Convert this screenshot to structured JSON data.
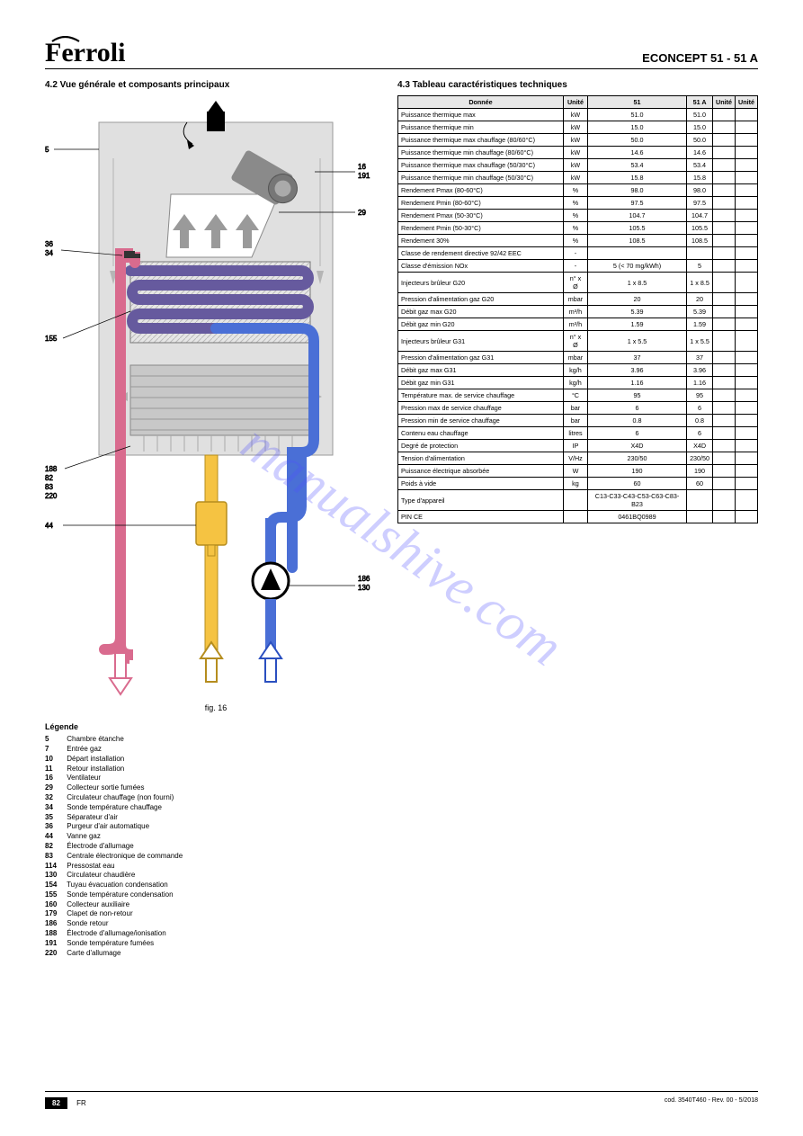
{
  "header": {
    "brand_text": "Ferroli",
    "model": "ECONCEPT 51 - 51 A"
  },
  "sections": {
    "general_title": "4.2 Vue générale et composants principaux",
    "table_title": "4.3 Tableau caractéristiques techniques"
  },
  "figure": {
    "caption": "fig. 16",
    "legend_title": "Légende",
    "items": [
      {
        "n": "5",
        "t": "Chambre étanche"
      },
      {
        "n": "7",
        "t": "Entrée gaz"
      },
      {
        "n": "10",
        "t": "Départ installation"
      },
      {
        "n": "11",
        "t": "Retour installation"
      },
      {
        "n": "16",
        "t": "Ventilateur"
      },
      {
        "n": "29",
        "t": "Collecteur sortie fumées"
      },
      {
        "n": "32",
        "t": "Circulateur chauffage (non fourni)"
      },
      {
        "n": "34",
        "t": "Sonde température chauffage"
      },
      {
        "n": "35",
        "t": "Séparateur d'air"
      },
      {
        "n": "36",
        "t": "Purgeur d'air automatique"
      },
      {
        "n": "44",
        "t": "Vanne gaz"
      },
      {
        "n": "82",
        "t": "Électrode d'allumage"
      },
      {
        "n": "83",
        "t": "Centrale électronique de commande"
      },
      {
        "n": "114",
        "t": "Pressostat eau"
      },
      {
        "n": "130",
        "t": "Circulateur chaudière"
      },
      {
        "n": "154",
        "t": "Tuyau évacuation condensation"
      },
      {
        "n": "155",
        "t": "Sonde température condensation"
      },
      {
        "n": "160",
        "t": "Collecteur auxiliaire"
      },
      {
        "n": "179",
        "t": "Clapet de non-retour"
      },
      {
        "n": "186",
        "t": "Sonde retour"
      },
      {
        "n": "188",
        "t": "Électrode d'allumage/ionisation"
      },
      {
        "n": "191",
        "t": "Sonde température fumées"
      },
      {
        "n": "220",
        "t": "Carte d'allumage"
      }
    ]
  },
  "table": {
    "columns": [
      "Donnée",
      "Unité",
      "51",
      "51 A",
      "Unité",
      "Unité"
    ],
    "rows": [
      [
        "Puissance thermique max",
        "kW",
        "51.0",
        "51.0",
        "",
        ""
      ],
      [
        "Puissance thermique min",
        "kW",
        "15.0",
        "15.0",
        "",
        ""
      ],
      [
        "Puissance thermique max chauffage (80/60°C)",
        "kW",
        "50.0",
        "50.0",
        "",
        ""
      ],
      [
        "Puissance thermique min chauffage (80/60°C)",
        "kW",
        "14.6",
        "14.6",
        "",
        ""
      ],
      [
        "Puissance thermique max chauffage (50/30°C)",
        "kW",
        "53.4",
        "53.4",
        "",
        ""
      ],
      [
        "Puissance thermique min chauffage (50/30°C)",
        "kW",
        "15.8",
        "15.8",
        "",
        ""
      ],
      [
        "Rendement Pmax (80-60°C)",
        "%",
        "98.0",
        "98.0",
        "",
        ""
      ],
      [
        "Rendement Pmin (80-60°C)",
        "%",
        "97.5",
        "97.5",
        "",
        ""
      ],
      [
        "Rendement Pmax (50-30°C)",
        "%",
        "104.7",
        "104.7",
        "",
        ""
      ],
      [
        "Rendement Pmin (50-30°C)",
        "%",
        "105.5",
        "105.5",
        "",
        ""
      ],
      [
        "Rendement 30%",
        "%",
        "108.5",
        "108.5",
        "",
        ""
      ],
      [
        "Classe de rendement directive 92/42 EEC",
        "-",
        "",
        "",
        "",
        ""
      ],
      [
        "Classe d'émission NOx",
        "-",
        "5 (< 70 mg/kWh)",
        "5",
        "",
        ""
      ],
      [
        "Injecteurs brûleur G20",
        "n° x Ø",
        "1 x 8.5",
        "1 x 8.5",
        "",
        ""
      ],
      [
        "Pression d'alimentation gaz G20",
        "mbar",
        "20",
        "20",
        "",
        ""
      ],
      [
        "Débit gaz max G20",
        "m³/h",
        "5.39",
        "5.39",
        "",
        ""
      ],
      [
        "Débit gaz min G20",
        "m³/h",
        "1.59",
        "1.59",
        "",
        ""
      ],
      [
        "Injecteurs brûleur G31",
        "n° x Ø",
        "1 x 5.5",
        "1 x 5.5",
        "",
        ""
      ],
      [
        "Pression d'alimentation gaz G31",
        "mbar",
        "37",
        "37",
        "",
        ""
      ],
      [
        "Débit gaz max G31",
        "kg/h",
        "3.96",
        "3.96",
        "",
        ""
      ],
      [
        "Débit gaz min G31",
        "kg/h",
        "1.16",
        "1.16",
        "",
        ""
      ],
      [
        "Température max. de service chauffage",
        "°C",
        "95",
        "95",
        "",
        ""
      ],
      [
        "Pression max de service chauffage",
        "bar",
        "6",
        "6",
        "",
        ""
      ],
      [
        "Pression min de service chauffage",
        "bar",
        "0.8",
        "0.8",
        "",
        ""
      ],
      [
        "Contenu eau chauffage",
        "litres",
        "6",
        "6",
        "",
        ""
      ],
      [
        "Degré de protection",
        "IP",
        "X4D",
        "X4D",
        "",
        ""
      ],
      [
        "Tension d'alimentation",
        "V/Hz",
        "230/50",
        "230/50",
        "",
        ""
      ],
      [
        "Puissance électrique absorbée",
        "W",
        "190",
        "190",
        "",
        ""
      ],
      [
        "Poids à vide",
        "kg",
        "60",
        "60",
        "",
        ""
      ],
      [
        "Type d'appareil",
        "",
        "C13-C33-C43-C53-C63-C83-B23",
        "",
        "",
        ""
      ],
      [
        "PIN CE",
        "",
        "0461BQ0989",
        "",
        "",
        ""
      ]
    ]
  },
  "diagram_style": {
    "chamber_fill": "#e0e0e0",
    "chamber_stroke": "#9a9a9a",
    "hot_pipe_stroke": "#d96b8e",
    "cold_pipe_stroke": "#4a6fd6",
    "gas_pipe_fill": "#f5c342",
    "gas_pipe_stroke": "#b58d1e",
    "serp_upper_fill": "#665a9e",
    "serp_grid_fill": "#c8c8c8",
    "fan_fill": "#8a8a8a",
    "arrow_grey": "#9a9a9a",
    "callout_stroke": "#000000",
    "label_font": 8
  },
  "footer": {
    "page": "82",
    "lang": "FR",
    "code": "cod. 3540T460 - Rev. 00 - 5/2018"
  }
}
